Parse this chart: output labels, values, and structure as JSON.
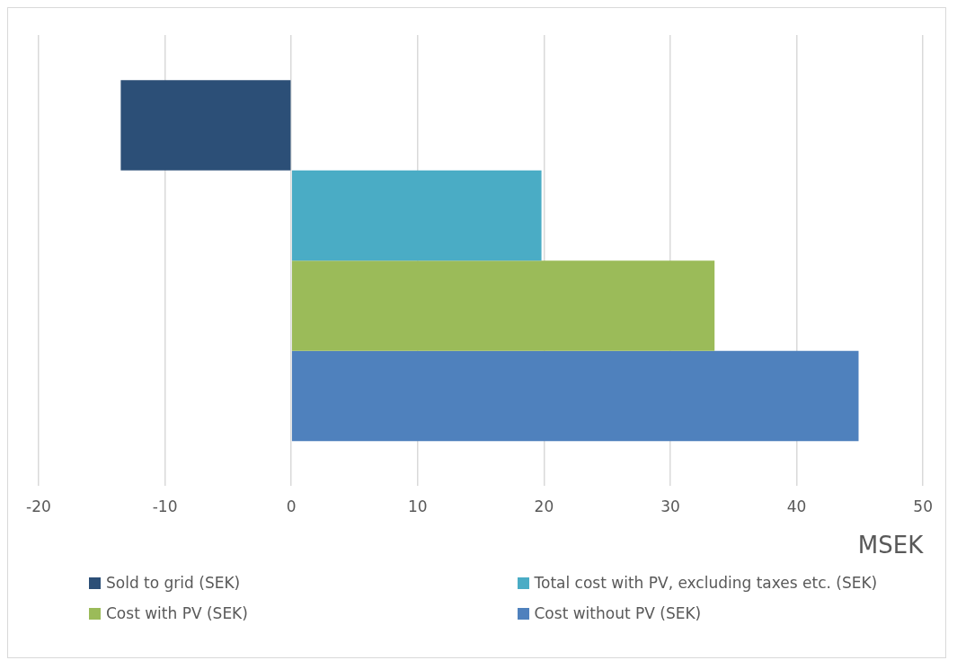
{
  "chart_data": {
    "type": "bar",
    "orientation": "horizontal",
    "xlabel": "MSEK",
    "categories": [
      null
    ],
    "series": [
      {
        "name": "Sold to grid (SEK)",
        "color": "#2c4f77",
        "values": [
          -13.5
        ]
      },
      {
        "name": "Total cost with PV, excluding taxes etc. (SEK)",
        "color": "#4aacc5",
        "values": [
          19.8
        ]
      },
      {
        "name": "Cost with PV (SEK)",
        "color": "#9bbb59",
        "values": [
          33.5
        ]
      },
      {
        "name": "Cost without PV (SEK)",
        "color": "#4f81bd",
        "values": [
          44.9
        ]
      }
    ],
    "xlim": [
      -20,
      50
    ],
    "xticks": [
      -20,
      -10,
      0,
      10,
      20,
      30,
      40,
      50
    ],
    "grid": "x",
    "legend": "bottom"
  }
}
